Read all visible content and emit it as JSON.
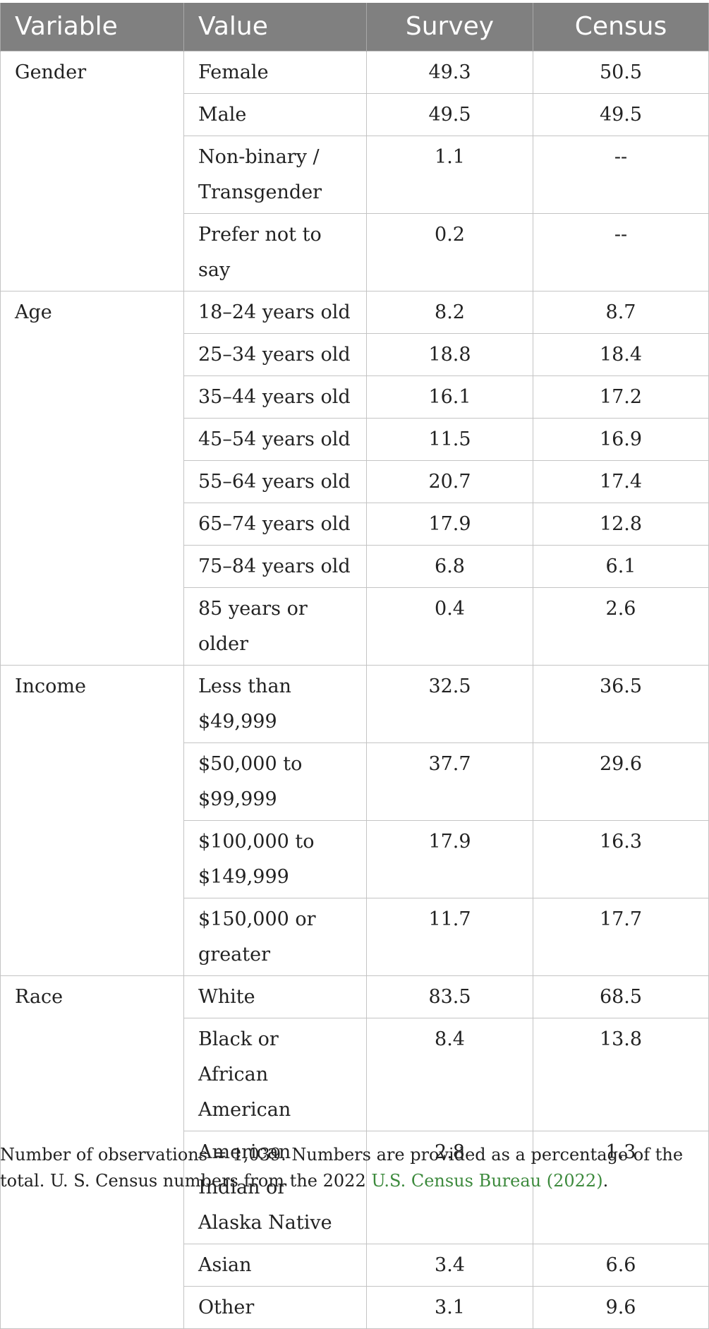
{
  "columns": [
    "Variable",
    "Value",
    "Survey",
    "Census"
  ],
  "groups": [
    {
      "variable": "Gender",
      "rows": [
        {
          "value": "Female",
          "survey": "49.3",
          "census": "50.5"
        },
        {
          "value": "Male",
          "survey": "49.5",
          "census": "49.5"
        },
        {
          "value": "Non-binary / Transgender",
          "survey": "1.1",
          "census": "--"
        },
        {
          "value": "Prefer not to say",
          "survey": "0.2",
          "census": "--"
        }
      ]
    },
    {
      "variable": "Age",
      "rows": [
        {
          "value": "18–24 years old",
          "survey": "8.2",
          "census": "8.7"
        },
        {
          "value": "25–34 years old",
          "survey": "18.8",
          "census": "18.4"
        },
        {
          "value": "35–44 years old",
          "survey": "16.1",
          "census": "17.2"
        },
        {
          "value": "45–54 years old",
          "survey": "11.5",
          "census": "16.9"
        },
        {
          "value": "55–64 years old",
          "survey": "20.7",
          "census": "17.4"
        },
        {
          "value": "65–74 years old",
          "survey": "17.9",
          "census": "12.8"
        },
        {
          "value": "75–84 years old",
          "survey": "6.8",
          "census": "6.1"
        },
        {
          "value": "85 years or older",
          "survey": "0.4",
          "census": "2.6"
        }
      ]
    },
    {
      "variable": "Income",
      "rows": [
        {
          "value": "Less than $49,999",
          "survey": "32.5",
          "census": "36.5"
        },
        {
          "value": "$50,000 to $99,999",
          "survey": "37.7",
          "census": "29.6"
        },
        {
          "value": "$100,000 to $149,999",
          "survey": "17.9",
          "census": "16.3"
        },
        {
          "value": "$150,000 or greater",
          "survey": "11.7",
          "census": "17.7"
        }
      ]
    },
    {
      "variable": "Race",
      "rows": [
        {
          "value": "White",
          "survey": "83.5",
          "census": "68.5"
        },
        {
          "value": "Black or African American",
          "survey": "8.4",
          "census": "13.8"
        },
        {
          "value": "American Indian or Alaska Native",
          "survey": "2.8",
          "census": "1.3"
        },
        {
          "value": "Asian",
          "survey": "3.4",
          "census": "6.6"
        },
        {
          "value": "Other",
          "survey": "3.1",
          "census": "9.6"
        }
      ]
    }
  ],
  "footnote": {
    "text": "Number of observations = 1,039. Numbers are provided as a percentage of the total. U. S. Census numbers from the 2022 ",
    "link": "U.S. Census Bureau (2022)",
    "end": "."
  }
}
